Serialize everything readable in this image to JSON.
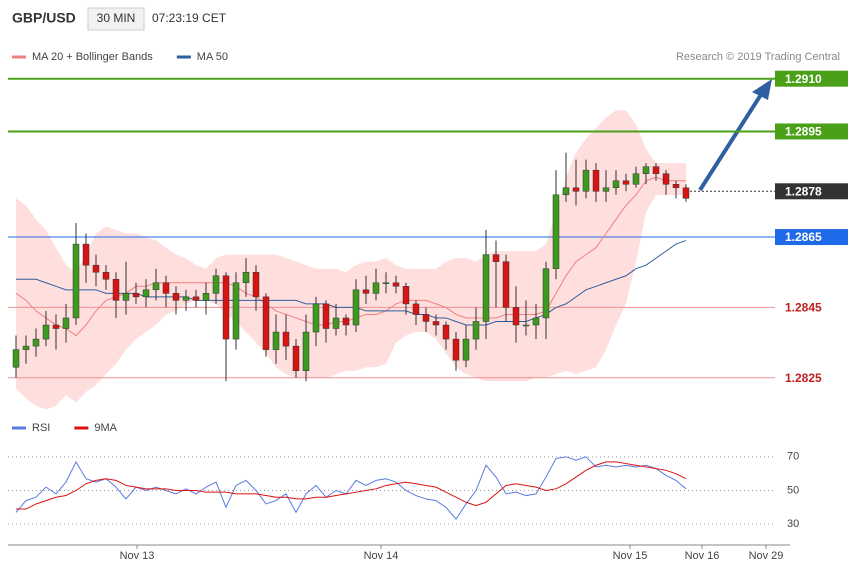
{
  "header": {
    "symbol": "GBP/USD",
    "interval": "30 MIN",
    "time": "07:23:19 CET",
    "source": "Research © 2019 Trading Central"
  },
  "chart_data": [
    {
      "type": "candlestick",
      "xlim": [
        -0.8,
        75.9
      ],
      "ylim": [
        1.2813,
        1.2921
      ],
      "grid": false,
      "up_color": "#3c9a1e",
      "down_color": "#d61414",
      "wick_color": "#333333",
      "open": [
        1.2828,
        1.2833,
        1.2834,
        1.2836,
        1.284,
        1.2839,
        1.2842,
        1.2863,
        1.2857,
        1.2855,
        1.2853,
        1.2847,
        1.2849,
        1.2848,
        1.285,
        1.2852,
        1.2849,
        1.2847,
        1.2848,
        1.2847,
        1.2849,
        1.2854,
        1.2836,
        1.2852,
        1.2855,
        1.2848,
        1.2833,
        1.2838,
        1.2834,
        1.2827,
        1.2838,
        1.2846,
        1.2839,
        1.2842,
        1.284,
        1.285,
        1.2849,
        1.2852,
        1.2852,
        1.2851,
        1.2846,
        1.2843,
        1.2841,
        1.284,
        1.2836,
        1.283,
        1.2836,
        1.2841,
        1.286,
        1.2858,
        1.2845,
        1.284,
        1.284,
        1.2842,
        1.2856,
        1.2877,
        1.2879,
        1.2878,
        1.2884,
        1.2878,
        1.2879,
        1.2881,
        1.288,
        1.2883,
        1.2885,
        1.2883,
        1.288,
        1.2879
      ],
      "high": [
        1.2837,
        1.2837,
        1.2839,
        1.2844,
        1.2843,
        1.2846,
        1.2869,
        1.2866,
        1.286,
        1.2857,
        1.2855,
        1.2858,
        1.2852,
        1.2853,
        1.2856,
        1.2854,
        1.2851,
        1.285,
        1.285,
        1.2852,
        1.2856,
        1.2855,
        1.2855,
        1.2859,
        1.2857,
        1.2849,
        1.2843,
        1.2843,
        1.2836,
        1.2843,
        1.2848,
        1.2847,
        1.2846,
        1.2843,
        1.2853,
        1.2854,
        1.2856,
        1.2855,
        1.2854,
        1.2852,
        1.2847,
        1.2845,
        1.2843,
        1.2841,
        1.2838,
        1.284,
        1.2845,
        1.2867,
        1.2864,
        1.286,
        1.2851,
        1.2847,
        1.2846,
        1.2858,
        1.2884,
        1.2889,
        1.2887,
        1.2887,
        1.2886,
        1.2884,
        1.2884,
        1.2883,
        1.2885,
        1.2886,
        1.2886,
        1.2884,
        1.2881,
        1.288
      ],
      "low": [
        1.2825,
        1.2829,
        1.2831,
        1.2834,
        1.2833,
        1.2835,
        1.284,
        1.2852,
        1.2851,
        1.285,
        1.2842,
        1.2843,
        1.2846,
        1.2845,
        1.2847,
        1.2845,
        1.2843,
        1.2844,
        1.2845,
        1.2843,
        1.2846,
        1.2824,
        1.2833,
        1.2848,
        1.2844,
        1.2831,
        1.2829,
        1.283,
        1.2825,
        1.2824,
        1.2834,
        1.2835,
        1.2837,
        1.2837,
        1.2838,
        1.2846,
        1.2847,
        1.2849,
        1.2849,
        1.2843,
        1.284,
        1.2838,
        1.2837,
        1.2833,
        1.2827,
        1.2828,
        1.2833,
        1.2836,
        1.2845,
        1.2841,
        1.2835,
        1.2837,
        1.2836,
        1.2836,
        1.2853,
        1.2875,
        1.2874,
        1.2876,
        1.2875,
        1.2875,
        1.2877,
        1.2878,
        1.2879,
        1.288,
        1.2881,
        1.2877,
        1.2876,
        1.2875
      ],
      "close": [
        1.2833,
        1.2834,
        1.2836,
        1.284,
        1.2839,
        1.2842,
        1.2863,
        1.2857,
        1.2855,
        1.2853,
        1.2847,
        1.2849,
        1.2848,
        1.285,
        1.2852,
        1.2849,
        1.2847,
        1.2848,
        1.2847,
        1.2849,
        1.2854,
        1.2836,
        1.2852,
        1.2855,
        1.2848,
        1.2833,
        1.2838,
        1.2834,
        1.2827,
        1.2838,
        1.2846,
        1.2839,
        1.2842,
        1.284,
        1.285,
        1.2849,
        1.2852,
        1.2852,
        1.2851,
        1.2846,
        1.2843,
        1.2841,
        1.284,
        1.2836,
        1.283,
        1.2836,
        1.2841,
        1.286,
        1.2858,
        1.2845,
        1.284,
        1.284,
        1.2842,
        1.2856,
        1.2877,
        1.2879,
        1.2878,
        1.2884,
        1.2878,
        1.2879,
        1.2881,
        1.288,
        1.2883,
        1.2885,
        1.2883,
        1.288,
        1.2879,
        1.2876
      ],
      "series": [
        {
          "name": "MA 20 + Bollinger Bands",
          "color": "#f08080",
          "band_color": "#ffd6d6",
          "values": [
            1.2849,
            1.2847,
            1.2844,
            1.2842,
            1.284,
            1.2839,
            1.2837,
            1.284,
            1.2844,
            1.2847,
            1.2848,
            1.2849,
            1.2851,
            1.2851,
            1.2852,
            1.2852,
            1.2852,
            1.2852,
            1.2852,
            1.2852,
            1.2852,
            1.2852,
            1.2851,
            1.2849,
            1.2848,
            1.2846,
            1.2844,
            1.2843,
            1.2842,
            1.2841,
            1.284,
            1.284,
            1.2841,
            1.2841,
            1.2842,
            1.2843,
            1.2843,
            1.2844,
            1.2846,
            1.2847,
            1.2847,
            1.2847,
            1.2846,
            1.2845,
            1.2843,
            1.2842,
            1.2842,
            1.2842,
            1.2842,
            1.2843,
            1.2843,
            1.2843,
            1.2843,
            1.2844,
            1.2849,
            1.2854,
            1.2858,
            1.286,
            1.2862,
            1.2866,
            1.287,
            1.2874,
            1.2877,
            1.2881,
            1.2882,
            1.2881,
            1.2881,
            1.2881
          ],
          "upper": [
            1.2876,
            1.2874,
            1.287,
            1.2867,
            1.2862,
            1.2857,
            1.2855,
            1.286,
            1.2866,
            1.2868,
            1.2867,
            1.2866,
            1.2866,
            1.2865,
            1.2864,
            1.2862,
            1.286,
            1.2859,
            1.2857,
            1.2856,
            1.2859,
            1.286,
            1.286,
            1.286,
            1.286,
            1.286,
            1.286,
            1.2859,
            1.2858,
            1.2857,
            1.2856,
            1.2856,
            1.2856,
            1.2855,
            1.2857,
            1.2858,
            1.2858,
            1.2859,
            1.2857,
            1.2856,
            1.2856,
            1.2856,
            1.2856,
            1.2858,
            1.2859,
            1.2859,
            1.2858,
            1.286,
            1.2861,
            1.2861,
            1.2861,
            1.2861,
            1.2861,
            1.2863,
            1.2872,
            1.2882,
            1.2889,
            1.2893,
            1.2896,
            1.2899,
            1.2901,
            1.2901,
            1.2897,
            1.289,
            1.2886,
            1.2886,
            1.2886,
            1.2886
          ],
          "lower": [
            1.2822,
            1.2819,
            1.2817,
            1.2816,
            1.2817,
            1.282,
            1.2818,
            1.2821,
            1.2823,
            1.2826,
            1.2829,
            1.2833,
            1.2836,
            1.2838,
            1.284,
            1.2843,
            1.2844,
            1.2846,
            1.2847,
            1.2847,
            1.2846,
            1.2843,
            1.2841,
            1.2838,
            1.2835,
            1.2832,
            1.2828,
            1.2826,
            1.2825,
            1.2825,
            1.2825,
            1.2825,
            1.2826,
            1.2827,
            1.2827,
            1.2828,
            1.2828,
            1.2829,
            1.2835,
            1.2837,
            1.2838,
            1.2838,
            1.2836,
            1.2832,
            1.2828,
            1.2826,
            1.2825,
            1.2824,
            1.2824,
            1.2824,
            1.2824,
            1.2824,
            1.2825,
            1.2825,
            1.2826,
            1.2827,
            1.2826,
            1.2827,
            1.2828,
            1.2833,
            1.284,
            1.2846,
            1.2858,
            1.2872,
            1.2877,
            1.2877,
            1.2877,
            1.2877
          ]
        },
        {
          "name": "MA 50",
          "color": "#2f5f9f",
          "values": [
            1.2853,
            1.2853,
            1.2853,
            1.2852,
            1.2851,
            1.285,
            1.285,
            1.285,
            1.285,
            1.2849,
            1.2849,
            1.2849,
            1.2849,
            1.2848,
            1.2848,
            1.2848,
            1.2848,
            1.2848,
            1.2847,
            1.2847,
            1.2847,
            1.2847,
            1.2847,
            1.2847,
            1.2847,
            1.2847,
            1.2847,
            1.2847,
            1.2847,
            1.2846,
            1.2846,
            1.2846,
            1.2845,
            1.2845,
            1.2845,
            1.2844,
            1.2844,
            1.2844,
            1.2844,
            1.2844,
            1.2843,
            1.2843,
            1.2842,
            1.2842,
            1.2841,
            1.284,
            1.284,
            1.284,
            1.2841,
            1.2841,
            1.2841,
            1.2841,
            1.2842,
            1.2843,
            1.2845,
            1.2846,
            1.2848,
            1.285,
            1.2851,
            1.2852,
            1.2853,
            1.2854,
            1.2856,
            1.2857,
            1.2859,
            1.2861,
            1.2863,
            1.2864
          ]
        }
      ],
      "levels": [
        {
          "value": 1.291,
          "label": "1.2910",
          "color": "#4aa016",
          "style": "solid",
          "boxed": true
        },
        {
          "value": 1.2895,
          "color": "#4aa016",
          "style": "solid",
          "boxed": true
        },
        {
          "value": 1.2878,
          "color": "#333333",
          "style": "dotted",
          "boxed": true
        },
        {
          "value": 1.2865,
          "color": "#1f6ae8",
          "style": "solid",
          "boxed": true
        },
        {
          "value": 1.2845,
          "color": "#f29090",
          "style": "solid",
          "boxed": false
        },
        {
          "value": 1.2825,
          "color": "#f29090",
          "style": "solid",
          "boxed": false
        }
      ]
    },
    {
      "type": "line",
      "xlim": [
        -0.8,
        75.9
      ],
      "ylim": [
        20,
        80
      ],
      "yticks": [
        70,
        50,
        30
      ],
      "grid": true,
      "xticks": [
        {
          "value": 12.1,
          "label": "Nov 13"
        },
        {
          "value": 36.5,
          "label": "Nov 14"
        },
        {
          "value": 61.4,
          "label": "Nov 15"
        },
        {
          "value": 68.6,
          "label": "Nov 16"
        },
        {
          "value": 75.0,
          "label": "Nov 29"
        }
      ],
      "series": [
        {
          "name": "RSI",
          "color": "#5b7be0",
          "values": [
            37,
            44,
            46,
            52,
            48,
            55,
            67,
            57,
            55,
            57,
            52,
            45,
            52,
            50,
            52,
            50,
            48,
            51,
            48,
            52,
            55,
            40,
            53,
            56,
            50,
            42,
            44,
            48,
            37,
            48,
            53,
            46,
            50,
            48,
            56,
            53,
            56,
            57,
            55,
            50,
            47,
            45,
            44,
            40,
            33,
            42,
            50,
            65,
            58,
            48,
            49,
            47,
            48,
            58,
            69,
            70,
            68,
            70,
            64,
            65,
            64,
            65,
            64,
            65,
            63,
            59,
            56,
            51
          ]
        },
        {
          "name": "9MA",
          "color": "#dd1111",
          "values": [
            39,
            39,
            42,
            44,
            46,
            47,
            50,
            54,
            56,
            57,
            56,
            53,
            52,
            51,
            51,
            51,
            50,
            50,
            50,
            49,
            49,
            49,
            48,
            48,
            48,
            47,
            46,
            46,
            45,
            45,
            46,
            46,
            47,
            48,
            49,
            50,
            51,
            53,
            54,
            55,
            54,
            53,
            52,
            49,
            46,
            43,
            41,
            43,
            48,
            53,
            54,
            53,
            52,
            50,
            51,
            54,
            58,
            62,
            65,
            67,
            67,
            66,
            65,
            64,
            63,
            62,
            60,
            57
          ]
        }
      ]
    }
  ]
}
